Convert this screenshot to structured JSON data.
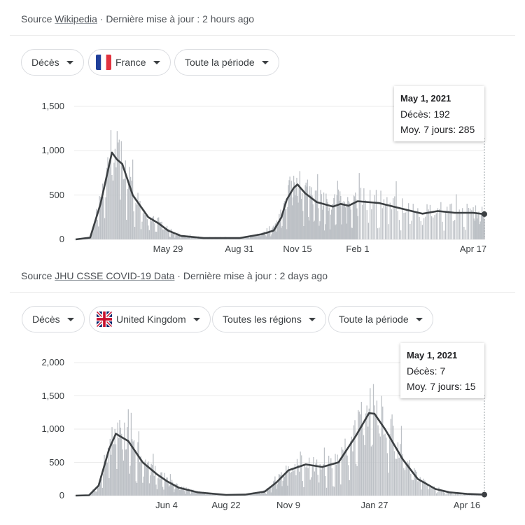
{
  "panels": [
    {
      "source_prefix": "Source ",
      "source_link": "Wikipedia",
      "updated": " · Dernière mise à jour : 2 hours ago",
      "filters": [
        "Décès",
        "France",
        "Toute la période"
      ],
      "flag": "france-flag-icon",
      "tooltip": {
        "date": "May 1, 2021",
        "deaths": "Décès: 192",
        "avg": "Moy. 7 jours: 285"
      }
    },
    {
      "source_prefix": "Source ",
      "source_link": "JHU CSSE COVID-19 Data",
      "updated": " · Dernière mise à jour : 2 days ago",
      "filters": [
        "Décès",
        "United Kingdom",
        "Toutes les régions",
        "Toute la période"
      ],
      "flag": "uk-flag-icon",
      "tooltip": {
        "date": "May 1, 2021",
        "deaths": "Décès: 7",
        "avg": "Moy. 7 jours: 15"
      }
    }
  ],
  "colors": {
    "bars": "#bdc1c6",
    "line": "#3c4043",
    "grid": "#ebebeb"
  },
  "chart_data": [
    {
      "type": "bar+line",
      "grid": true,
      "ylim": [
        0,
        1500
      ],
      "yticks": [
        "0",
        "500",
        "1,000",
        "1,500"
      ],
      "ytick_values": [
        0,
        500,
        1000,
        1500
      ],
      "xticks": [
        "May 29",
        "Aug 31",
        "Nov 15",
        "Feb 1",
        "Apr 17"
      ],
      "xtick_dates": [
        "2020-05-29",
        "2020-08-31",
        "2020-11-15",
        "2021-02-01",
        "2021-04-17"
      ],
      "x_range": [
        "2020-03-01",
        "2021-05-01"
      ],
      "series": [
        {
          "points": [
            [
              "2020-03-01",
              0
            ],
            [
              "2020-03-15",
              20
            ],
            [
              "2020-03-25",
              400
            ],
            [
              "2020-04-05",
              980
            ],
            [
              "2020-04-10",
              900
            ],
            [
              "2020-04-15",
              850
            ],
            [
              "2020-04-25",
              500
            ],
            [
              "2020-05-10",
              250
            ],
            [
              "2020-05-20",
              180
            ],
            [
              "2020-05-29",
              100
            ],
            [
              "2020-06-15",
              40
            ],
            [
              "2020-07-15",
              15
            ],
            [
              "2020-08-31",
              15
            ],
            [
              "2020-09-30",
              60
            ],
            [
              "2020-10-15",
              100
            ],
            [
              "2020-10-25",
              250
            ],
            [
              "2020-11-01",
              450
            ],
            [
              "2020-11-10",
              580
            ],
            [
              "2020-11-15",
              620
            ],
            [
              "2020-11-25",
              520
            ],
            [
              "2020-12-10",
              420
            ],
            [
              "2020-12-31",
              370
            ],
            [
              "2021-01-10",
              400
            ],
            [
              "2021-01-20",
              380
            ],
            [
              "2021-02-01",
              430
            ],
            [
              "2021-02-15",
              410
            ],
            [
              "2021-03-01",
              350
            ],
            [
              "2021-03-15",
              290
            ],
            [
              "2021-03-25",
              320
            ],
            [
              "2021-04-05",
              300
            ],
            [
              "2021-04-17",
              300
            ],
            [
              "2021-05-01",
              285
            ]
          ]
        }
      ]
    },
    {
      "type": "bar+line",
      "grid": true,
      "ylim": [
        0,
        2000
      ],
      "yticks": [
        "0",
        "500",
        "1,000",
        "1,500",
        "2,000"
      ],
      "ytick_values": [
        0,
        500,
        1000,
        1500,
        2000
      ],
      "xticks": [
        "Jun 4",
        "Aug 22",
        "Nov 9",
        "Jan 27",
        "Apr 16"
      ],
      "xtick_dates": [
        "2020-06-04",
        "2020-08-22",
        "2020-11-09",
        "2021-01-27",
        "2021-04-16"
      ],
      "x_range": [
        "2020-03-01",
        "2021-05-01"
      ],
      "series": [
        {
          "points": [
            [
              "2020-03-01",
              0
            ],
            [
              "2020-03-15",
              5
            ],
            [
              "2020-03-25",
              150
            ],
            [
              "2020-04-05",
              700
            ],
            [
              "2020-04-12",
              930
            ],
            [
              "2020-04-25",
              820
            ],
            [
              "2020-05-10",
              500
            ],
            [
              "2020-05-25",
              320
            ],
            [
              "2020-06-04",
              220
            ],
            [
              "2020-06-20",
              120
            ],
            [
              "2020-07-15",
              50
            ],
            [
              "2020-08-22",
              10
            ],
            [
              "2020-09-15",
              15
            ],
            [
              "2020-10-10",
              60
            ],
            [
              "2020-10-25",
              200
            ],
            [
              "2020-11-09",
              380
            ],
            [
              "2020-11-25",
              470
            ],
            [
              "2020-12-10",
              430
            ],
            [
              "2020-12-25",
              500
            ],
            [
              "2021-01-10",
              900
            ],
            [
              "2021-01-22",
              1240
            ],
            [
              "2021-01-27",
              1230
            ],
            [
              "2021-02-05",
              1000
            ],
            [
              "2021-02-20",
              550
            ],
            [
              "2021-03-05",
              250
            ],
            [
              "2021-03-20",
              100
            ],
            [
              "2021-04-01",
              50
            ],
            [
              "2021-04-16",
              25
            ],
            [
              "2021-05-01",
              15
            ]
          ]
        }
      ]
    }
  ]
}
